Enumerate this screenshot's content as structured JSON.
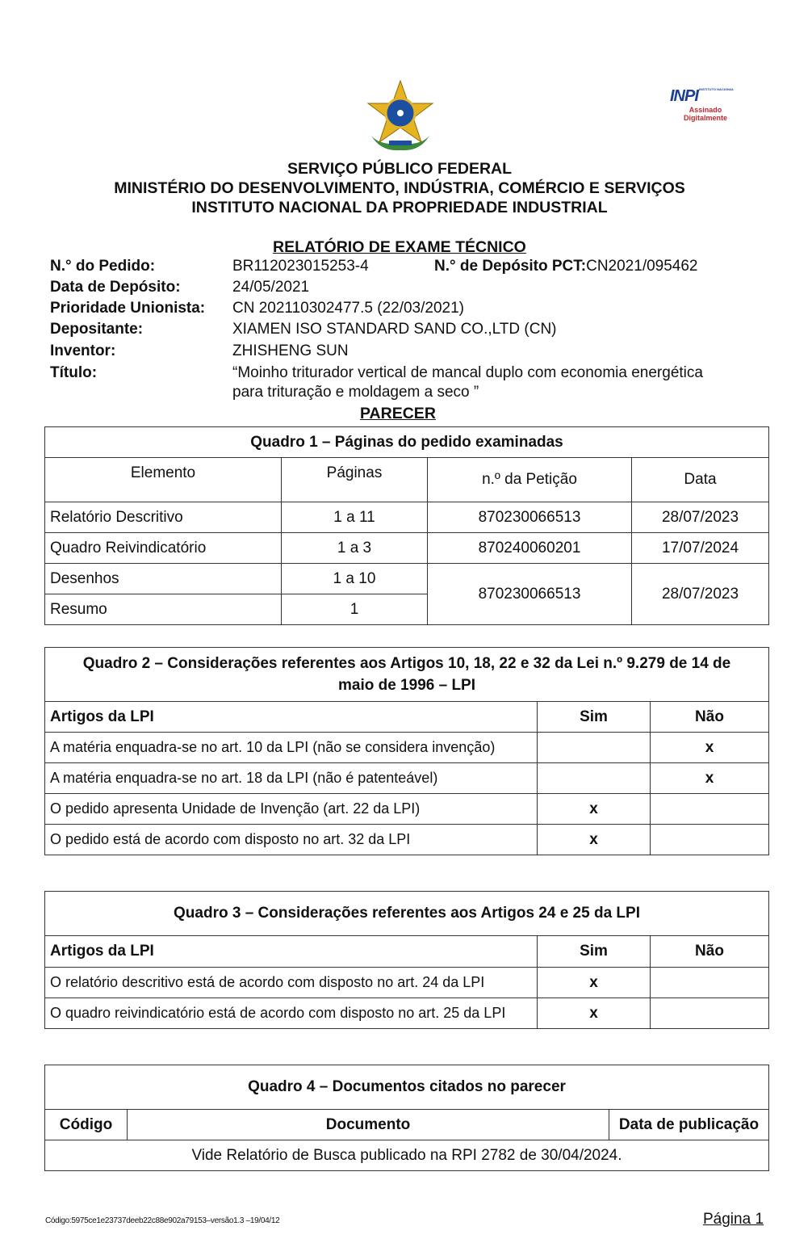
{
  "header": {
    "line1": "SERVIÇO PÚBLICO FEDERAL",
    "line2": "MINISTÉRIO DO DESENVOLVIMENTO, INDÚSTRIA, COMÉRCIO E SERVIÇOS",
    "line3": "INSTITUTO NACIONAL DA PROPRIEDADE INDUSTRIAL",
    "logo_text": "INPI INSTITUTO NACIONAL DA PROPRIEDADE INDUSTRIAL",
    "signed_label": "Assinado Digitalmente",
    "signed_color": "#c0282d",
    "logo_color": "#1c3f94"
  },
  "report_title": "RELATÓRIO DE EXAME TÉCNICO",
  "info": {
    "pedido_label": "N.° do Pedido:",
    "pedido": "BR112023015253-4",
    "pct_label": "N.° de Depósito PCT:",
    "pct": "CN2021/095462",
    "data_label": "Data de Depósito:",
    "data": "24/05/2021",
    "prioridade_label": "Prioridade Unionista:",
    "prioridade": "CN 202110302477.5 (22/03/2021)",
    "depositante_label": "Depositante:",
    "depositante": "XIAMEN ISO STANDARD SAND CO.,LTD (CN)",
    "inventor_label": "Inventor:",
    "inventor": "ZHISHENG SUN",
    "titulo_label": "Título:",
    "titulo_1": "“Moinho triturador vertical de mancal duplo com economia energética",
    "titulo_2": "para trituração e moldagem a seco ”"
  },
  "parecer": "PARECER",
  "quadro1": {
    "title": "Quadro 1 – Páginas do pedido examinadas",
    "headers": [
      "Elemento",
      "Páginas",
      "n.º da Petição",
      "Data"
    ],
    "rows": [
      [
        "Relatório Descritivo",
        "1 a 11",
        "870230066513",
        "28/07/2023"
      ],
      [
        "Quadro Reivindicatório",
        "1 a 3",
        "870240060201",
        "17/07/2024"
      ],
      [
        "Desenhos",
        "1 a 10",
        "870230066513",
        "28/07/2023"
      ],
      [
        "Resumo",
        "1"
      ]
    ]
  },
  "quadro2": {
    "title_1": "Quadro 2 – Considerações referentes aos Artigos 10, 18, 22 e 32 da Lei n.º 9.279 de 14 de",
    "title_2": "maio de 1996 –  LPI",
    "headers": [
      "Artigos da LPI",
      "Sim",
      "Não"
    ],
    "rows": [
      [
        "A matéria enquadra-se no art. 10 da LPI (não se considera invenção)",
        "",
        "x"
      ],
      [
        "A matéria enquadra-se no art. 18 da LPI (não é patenteável)",
        "",
        "x"
      ],
      [
        "O pedido apresenta Unidade de Invenção (art. 22 da LPI)",
        "x",
        ""
      ],
      [
        "O pedido está de acordo com disposto no art. 32 da LPI",
        "x",
        ""
      ]
    ]
  },
  "quadro3": {
    "title": "Quadro 3 – Considerações referentes aos Artigos 24 e 25 da LPI",
    "headers": [
      "Artigos da LPI",
      "Sim",
      "Não"
    ],
    "rows": [
      [
        "O relatório descritivo está de acordo com disposto no art. 24 da LPI",
        "x",
        ""
      ],
      [
        "O quadro reivindicatório está de acordo com disposto no art. 25 da LPI",
        "x",
        ""
      ]
    ]
  },
  "quadro4": {
    "title": "Quadro 4 – Documentos citados no parecer",
    "headers": [
      "Código",
      "Documento",
      "Data de publicação"
    ],
    "note": "Vide Relatório de Busca publicado na RPI 2782 de 30/04/2024."
  },
  "footer": {
    "code": "Código:5975ce1e23737deeb22c88e902a79153–versão1.3 –19/04/12",
    "page": "Página 1"
  }
}
